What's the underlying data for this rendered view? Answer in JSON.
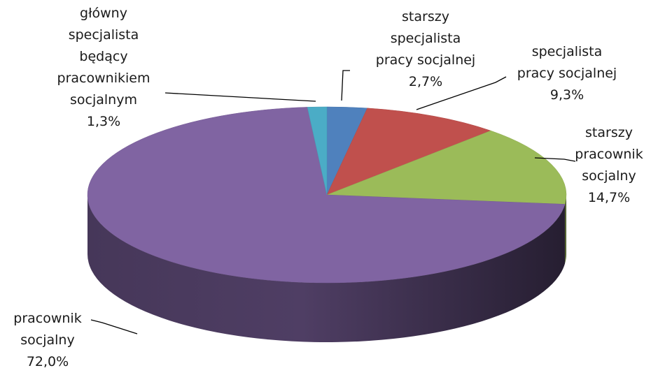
{
  "chart_data": {
    "type": "pie",
    "title": "",
    "slices": [
      {
        "label_lines": [
          "starszy",
          "specjalista",
          "pracy socjalnej"
        ],
        "value_label": "2,7%",
        "value": 2.7,
        "color": "#4F81BD"
      },
      {
        "label_lines": [
          "specjalista",
          "pracy socjalnej"
        ],
        "value_label": "9,3%",
        "value": 9.3,
        "color": "#C0504D"
      },
      {
        "label_lines": [
          "starszy",
          "pracownik",
          "socjalny"
        ],
        "value_label": "14,7%",
        "value": 14.7,
        "color": "#9BBB59"
      },
      {
        "label_lines": [
          "pracownik",
          "socjalny"
        ],
        "value_label": "72,0%",
        "value": 72.0,
        "color": "#8064A2"
      },
      {
        "label_lines": [
          "główny",
          "specjalista",
          "będący",
          "pracownikiem",
          "socjalnym"
        ],
        "value_label": "1,3%",
        "value": 1.3,
        "color": "#4BACC6"
      }
    ],
    "start_angle": "12 o'clock, clockwise",
    "style": "3d",
    "legend": "none"
  }
}
